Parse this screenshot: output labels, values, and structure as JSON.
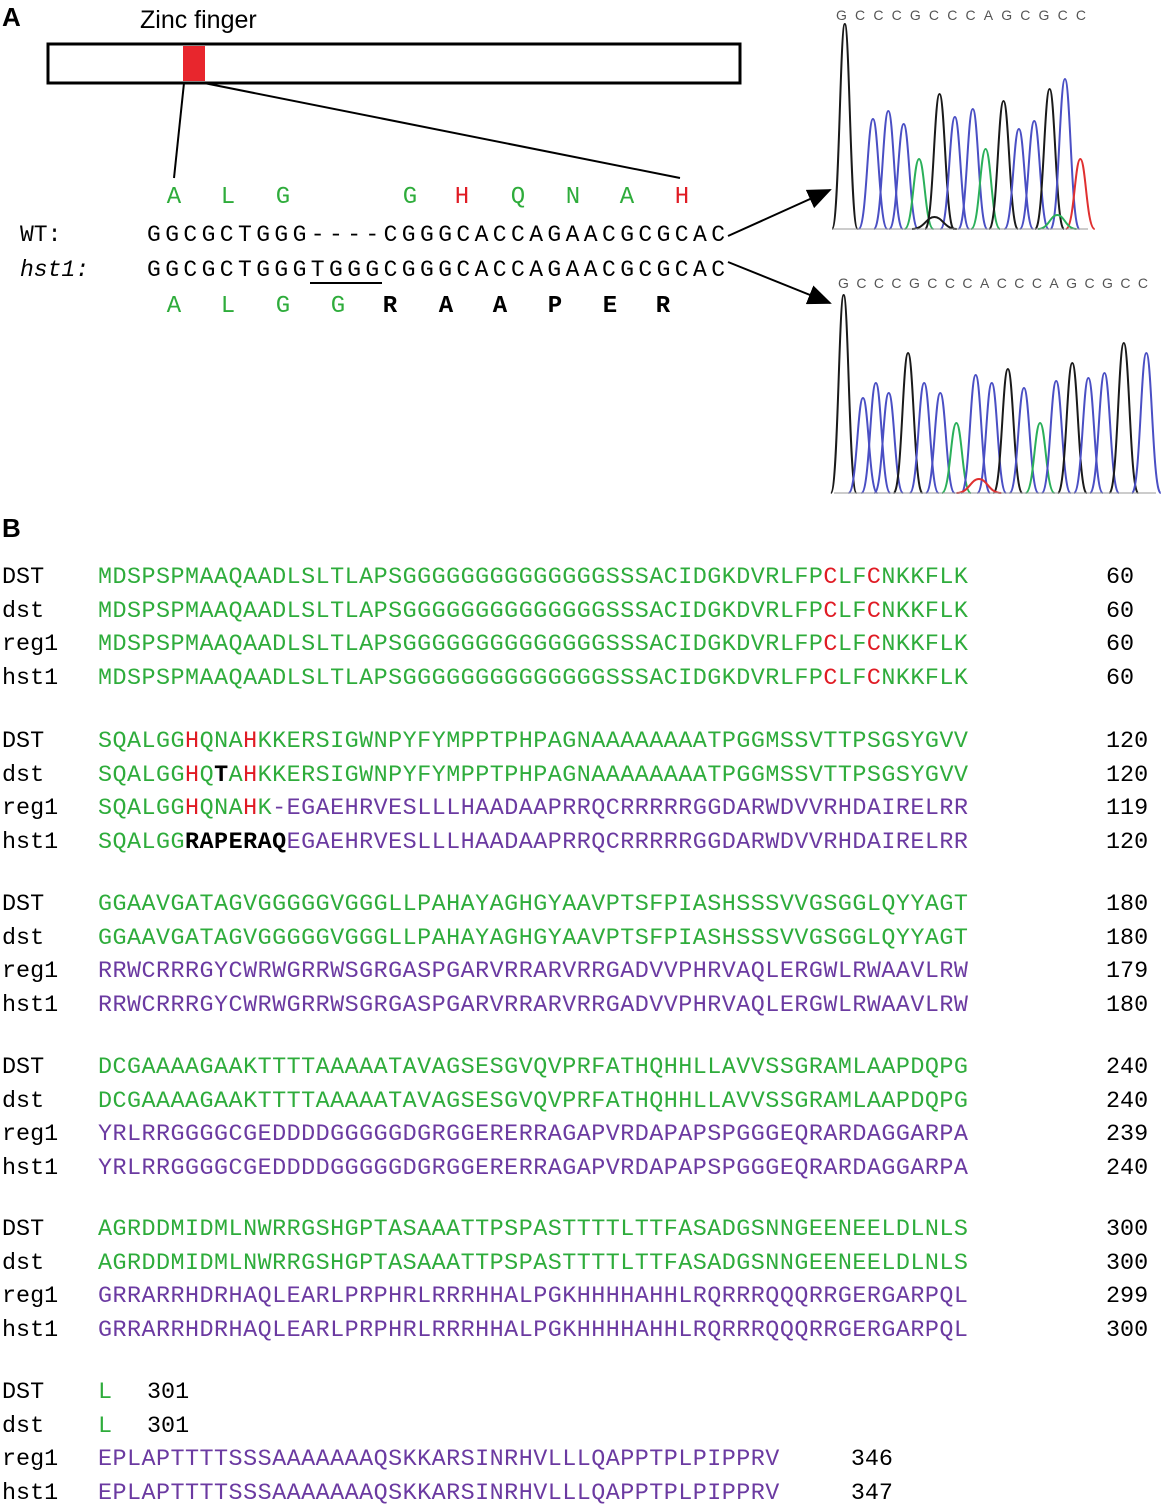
{
  "panel_a": {
    "label": "A",
    "domain_title": "Zinc finger",
    "wt_label": "WT:",
    "mut_label": "hst1:",
    "wt_seq": "GGCGCTGGG----CGGGCACCAGAACGCGCAC",
    "mut_seq": "GGCGCTGGGTGGGCGGGCACCAGAACGCGCAC",
    "wt_aa": [
      {
        "aa": "A",
        "color": "green"
      },
      {
        "aa": "L",
        "color": "green"
      },
      {
        "aa": "G",
        "color": "green"
      },
      {
        "aa": "G",
        "color": "green"
      },
      {
        "aa": "H",
        "color": "red"
      },
      {
        "aa": "Q",
        "color": "green"
      },
      {
        "aa": "N",
        "color": "green"
      },
      {
        "aa": "A",
        "color": "green"
      },
      {
        "aa": "H",
        "color": "red"
      }
    ],
    "mut_aa": [
      {
        "aa": "A",
        "color": "green"
      },
      {
        "aa": "L",
        "color": "green"
      },
      {
        "aa": "G",
        "color": "green"
      },
      {
        "aa": "G",
        "color": "green"
      },
      {
        "aa": "R",
        "color": "black"
      },
      {
        "aa": "A",
        "color": "black"
      },
      {
        "aa": "A",
        "color": "black"
      },
      {
        "aa": "P",
        "color": "black"
      },
      {
        "aa": "E",
        "color": "black"
      },
      {
        "aa": "R",
        "color": "black"
      }
    ],
    "chromatogram_top_bases": "GCCCGCCCAGCGCC",
    "chromatogram_bottom_bases": "GCCCGCCCACCCAGCGCC"
  },
  "panel_b": {
    "label": "B",
    "blocks": [
      {
        "rows": [
          {
            "name": "DST",
            "end": "60",
            "segs": [
              {
                "t": "MDSPSPMAAQAADLSLTLAPSGGGGGGGGGGGGGGSSSACIDGKDVRLFP",
                "c": "g"
              },
              {
                "t": "C",
                "c": "r"
              },
              {
                "t": "LF",
                "c": "g"
              },
              {
                "t": "C",
                "c": "r"
              },
              {
                "t": "NKKFLK",
                "c": "g"
              }
            ]
          },
          {
            "name": "dst",
            "end": "60",
            "segs": [
              {
                "t": "MDSPSPMAAQAADLSLTLAPSGGGGGGGGGGGGGGSSSACIDGKDVRLFP",
                "c": "g"
              },
              {
                "t": "C",
                "c": "r"
              },
              {
                "t": "LF",
                "c": "g"
              },
              {
                "t": "C",
                "c": "r"
              },
              {
                "t": "NKKFLK",
                "c": "g"
              }
            ]
          },
          {
            "name": "reg1",
            "end": "60",
            "segs": [
              {
                "t": "MDSPSPMAAQAADLSLTLAPSGGGGGGGGGGGGGGSSSACIDGKDVRLFP",
                "c": "g"
              },
              {
                "t": "C",
                "c": "r"
              },
              {
                "t": "LF",
                "c": "g"
              },
              {
                "t": "C",
                "c": "r"
              },
              {
                "t": "NKKFLK",
                "c": "g"
              }
            ]
          },
          {
            "name": "hst1",
            "end": "60",
            "segs": [
              {
                "t": "MDSPSPMAAQAADLSLTLAPSGGGGGGGGGGGGGGSSSACIDGKDVRLFP",
                "c": "g"
              },
              {
                "t": "C",
                "c": "r"
              },
              {
                "t": "LF",
                "c": "g"
              },
              {
                "t": "C",
                "c": "r"
              },
              {
                "t": "NKKFLK",
                "c": "g"
              }
            ]
          }
        ]
      },
      {
        "rows": [
          {
            "name": "DST",
            "end": "120",
            "segs": [
              {
                "t": "SQALGG",
                "c": "g"
              },
              {
                "t": "H",
                "c": "r"
              },
              {
                "t": "QNA",
                "c": "g"
              },
              {
                "t": "H",
                "c": "r"
              },
              {
                "t": "KKERSIGWNPYFYMPPTPHPAGNAAAAAAAATPGGMSSVTTPSGSYGVV",
                "c": "g"
              }
            ]
          },
          {
            "name": "dst",
            "end": "120",
            "segs": [
              {
                "t": "SQALGG",
                "c": "g"
              },
              {
                "t": "H",
                "c": "r"
              },
              {
                "t": "Q",
                "c": "g"
              },
              {
                "t": "T",
                "c": "k"
              },
              {
                "t": "A",
                "c": "g"
              },
              {
                "t": "H",
                "c": "r"
              },
              {
                "t": "KKERSIGWNPYFYMPPTPHPAGNAAAAAAAATPGGMSSVTTPSGSYGVV",
                "c": "g"
              }
            ]
          },
          {
            "name": "reg1",
            "end": "119",
            "segs": [
              {
                "t": "SQALGG",
                "c": "g"
              },
              {
                "t": "H",
                "c": "r"
              },
              {
                "t": "QNA",
                "c": "g"
              },
              {
                "t": "H",
                "c": "r"
              },
              {
                "t": "K",
                "c": "g"
              },
              {
                "t": "-EGAEHRVESLLLHAADAAPRRQCRRRRRGGDARWDVVRHDAIRELRR",
                "c": "p"
              }
            ]
          },
          {
            "name": "hst1",
            "end": "120",
            "segs": [
              {
                "t": "SQALGG",
                "c": "g"
              },
              {
                "t": "RAPERAQ",
                "c": "k"
              },
              {
                "t": "EGAEHRVESLLLHAADAAPRRQCRRRRRGGDARWDVVRHDAIRELRR",
                "c": "p"
              }
            ]
          }
        ]
      },
      {
        "rows": [
          {
            "name": "DST",
            "end": "180",
            "segs": [
              {
                "t": "GGAAVGATAGVGGGGGVGGGLLPAHAYAGHGYAAVPTSFPIASHSSSVVGSGGLQYYAGT",
                "c": "g"
              }
            ]
          },
          {
            "name": "dst",
            "end": "180",
            "segs": [
              {
                "t": "GGAAVGATAGVGGGGGVGGGLLPAHAYAGHGYAAVPTSFPIASHSSSVVGSGGLQYYAGT",
                "c": "g"
              }
            ]
          },
          {
            "name": "reg1",
            "end": "179",
            "segs": [
              {
                "t": "RRWCRRRGYCWRWGRRWSGRGASPGARVRRARVRRGADVVPHRVAQLERGWLRWAAVLRW",
                "c": "p"
              }
            ]
          },
          {
            "name": "hst1",
            "end": "180",
            "segs": [
              {
                "t": "RRWCRRRGYCWRWGRRWSGRGASPGARVRRARVRRGADVVPHRVAQLERGWLRWAAVLRW",
                "c": "p"
              }
            ]
          }
        ]
      },
      {
        "rows": [
          {
            "name": "DST",
            "end": "240",
            "segs": [
              {
                "t": "DCGAAAAGAAKTTTTAAAAATAVAGSESGVQVPRFATHQHHLLAVVSSGRAMLAAPDQPG",
                "c": "g"
              }
            ]
          },
          {
            "name": "dst",
            "end": "240",
            "segs": [
              {
                "t": "DCGAAAAGAAKTTTTAAAAATAVAGSESGVQVPRFATHQHHLLAVVSSGRAMLAAPDQPG",
                "c": "g"
              }
            ]
          },
          {
            "name": "reg1",
            "end": "239",
            "segs": [
              {
                "t": "YRLRRGGGGCGEDDDDGGGGGDGRGGERERRAGAPVRDAPAPSPGGGEQRARDAGGARPA",
                "c": "p"
              }
            ]
          },
          {
            "name": "hst1",
            "end": "240",
            "segs": [
              {
                "t": "YRLRRGGGGCGEDDDDGGGGGDGRGGERERRAGAPVRDAPAPSPGGGEQRARDAGGARPA",
                "c": "p"
              }
            ]
          }
        ]
      },
      {
        "rows": [
          {
            "name": "DST",
            "end": "300",
            "segs": [
              {
                "t": "AGRDDMIDMLNWRRGSHGPTASAAATTPSPASTTTTLTTFASADGSNNGEENEELDLNLS",
                "c": "g"
              }
            ]
          },
          {
            "name": "dst",
            "end": "300",
            "segs": [
              {
                "t": "AGRDDMIDMLNWRRGSHGPTASAAATTPSPASTTTTLTTFASADGSNNGEENEELDLNLS",
                "c": "g"
              }
            ]
          },
          {
            "name": "reg1",
            "end": "299",
            "segs": [
              {
                "t": "GRRARRHDRHAQLEARLPRPHRLRRRHHALPGKHHHHAHHLRQRRRQQQRRGERGARPQL",
                "c": "p"
              }
            ]
          },
          {
            "name": "hst1",
            "end": "300",
            "segs": [
              {
                "t": "GRRARRHDRHAQLEARLPRPHRLRRRHHALPGKHHHHAHHLRQRRRQQQRRGERGARPQL",
                "c": "p"
              }
            ]
          }
        ]
      },
      {
        "rows": [
          {
            "name": "DST",
            "end": "301",
            "segs": [
              {
                "t": "L",
                "c": "g"
              }
            ]
          },
          {
            "name": "dst",
            "end": "301",
            "segs": [
              {
                "t": "L",
                "c": "g"
              }
            ]
          },
          {
            "name": "reg1",
            "end": "346",
            "segs": [
              {
                "t": "EPLAPTTTTSSSAAAAAAAQSKKARSINRHVLLLQAPPTPLPIPPRV",
                "c": "p"
              }
            ]
          },
          {
            "name": "hst1",
            "end": "347",
            "segs": [
              {
                "t": "EPLAPTTTTSSSAAAAAAAQSKKARSINRHVLLLQAPPTPLPIPPRV",
                "c": "p"
              }
            ]
          }
        ]
      }
    ]
  },
  "colors": {
    "green": "#2eac3b",
    "red": "#e01b24",
    "purple": "#6b3aa1",
    "black": "#000000",
    "trace_green": "#2bb05a",
    "trace_blue": "#4a4fc4",
    "trace_black": "#1a1a1a",
    "trace_red": "#e03030"
  }
}
